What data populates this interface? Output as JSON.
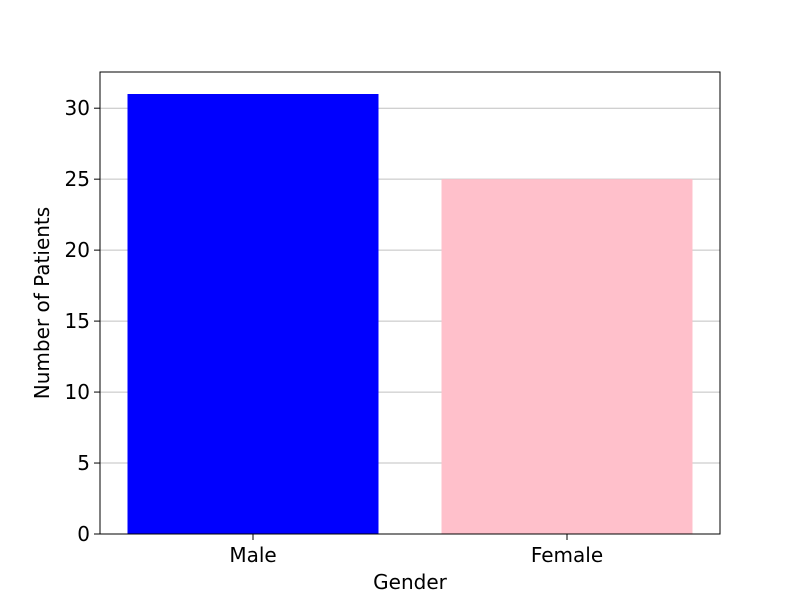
{
  "chart_data": {
    "type": "bar",
    "title": "",
    "xlabel": "Gender",
    "ylabel": "Number of Patients",
    "categories": [
      "Male",
      "Female"
    ],
    "values": [
      31,
      25
    ],
    "colors": [
      "#0000ff",
      "#ffc0cb"
    ],
    "ylim": [
      0,
      32.55
    ],
    "yticks": [
      "0",
      "5",
      "10",
      "15",
      "20",
      "25",
      "30"
    ],
    "grid": "horizontal"
  }
}
